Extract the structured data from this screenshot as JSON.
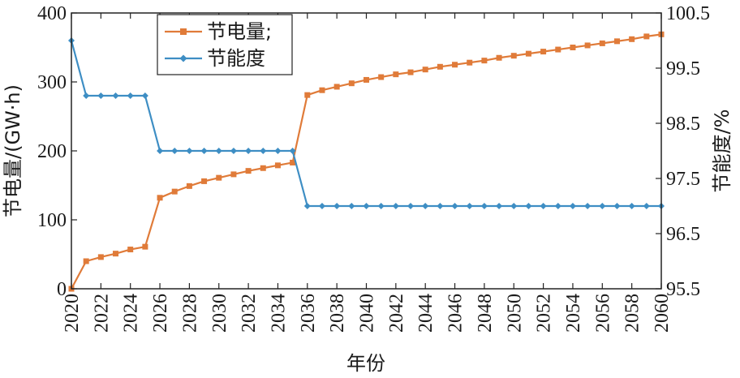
{
  "chart_data": {
    "type": "line",
    "title": "",
    "xlabel": "年份",
    "ylabel_left": "节电量/(GW·h)",
    "ylabel_right": "节能度/%",
    "xlim": [
      2020,
      2060
    ],
    "ylim_left": [
      0,
      400
    ],
    "ylim_right": [
      95.5,
      100.5
    ],
    "x_ticks": [
      2020,
      2022,
      2024,
      2026,
      2028,
      2030,
      2032,
      2034,
      2036,
      2038,
      2040,
      2042,
      2044,
      2046,
      2048,
      2050,
      2052,
      2054,
      2056,
      2058,
      2060
    ],
    "x_tick_labels": [
      "2020",
      "2022",
      "2024",
      "2026",
      "2028",
      "2030",
      "2032",
      "2034",
      "2036",
      "2038",
      "2040",
      "2042",
      "2044",
      "2046",
      "2048",
      "2050",
      "2052",
      "2054",
      "2056",
      "2058",
      "2060"
    ],
    "y_left_ticks": [
      0,
      100,
      200,
      300,
      400
    ],
    "y_left_tick_labels": [
      "0",
      "100",
      "200",
      "300",
      "400"
    ],
    "y_right_ticks": [
      95.5,
      96.5,
      97.5,
      98.5,
      99.5,
      100.5
    ],
    "y_right_tick_labels": [
      "95.5",
      "96.5",
      "97.5",
      "98.5",
      "99.5",
      "100.5"
    ],
    "grid": false,
    "legend_position": "top-left",
    "x": [
      2020,
      2021,
      2022,
      2023,
      2024,
      2025,
      2026,
      2027,
      2028,
      2029,
      2030,
      2031,
      2032,
      2033,
      2034,
      2035,
      2036,
      2037,
      2038,
      2039,
      2040,
      2041,
      2042,
      2043,
      2044,
      2045,
      2046,
      2047,
      2048,
      2049,
      2050,
      2051,
      2052,
      2053,
      2054,
      2055,
      2056,
      2057,
      2058,
      2059,
      2060
    ],
    "series": [
      {
        "name": "节电量;",
        "axis": "left",
        "color": "#E07B39",
        "marker": "square",
        "values": [
          0,
          40,
          46,
          51,
          57,
          61,
          132,
          141,
          149,
          156,
          161,
          166,
          171,
          175,
          179,
          183,
          281,
          288,
          293,
          298,
          303,
          307,
          311,
          314,
          318,
          322,
          325,
          328,
          331,
          335,
          338,
          341,
          344,
          347,
          350,
          353,
          356,
          359,
          362,
          366,
          369
        ]
      },
      {
        "name": "节能度",
        "axis": "right",
        "color": "#3E8EC4",
        "marker": "diamond",
        "values": [
          100,
          99,
          99,
          99,
          99,
          99,
          98,
          98,
          98,
          98,
          98,
          98,
          98,
          98,
          98,
          98,
          97,
          97,
          97,
          97,
          97,
          97,
          97,
          97,
          97,
          97,
          97,
          97,
          97,
          97,
          97,
          97,
          97,
          97,
          97,
          97,
          97,
          97,
          97,
          97,
          97
        ]
      }
    ]
  }
}
